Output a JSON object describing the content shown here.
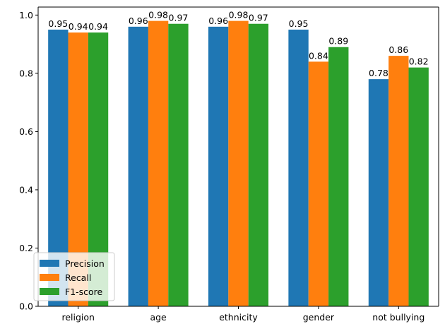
{
  "chart_data": {
    "type": "bar",
    "categories": [
      "religion",
      "age",
      "ethnicity",
      "gender",
      "not bullying"
    ],
    "series": [
      {
        "name": "Precision",
        "color": "#1f77b4",
        "values": [
          0.95,
          0.96,
          0.96,
          0.95,
          0.78
        ]
      },
      {
        "name": "Recall",
        "color": "#ff7f0e",
        "values": [
          0.94,
          0.98,
          0.98,
          0.84,
          0.86
        ]
      },
      {
        "name": "F1-score",
        "color": "#2ca02c",
        "values": [
          0.94,
          0.97,
          0.97,
          0.89,
          0.82
        ]
      }
    ],
    "ylim": [
      0,
      1.0
    ],
    "yticks": [
      0.0,
      0.2,
      0.4,
      0.6,
      0.8,
      1.0
    ],
    "grid": false,
    "legend_position": "lower-left"
  }
}
